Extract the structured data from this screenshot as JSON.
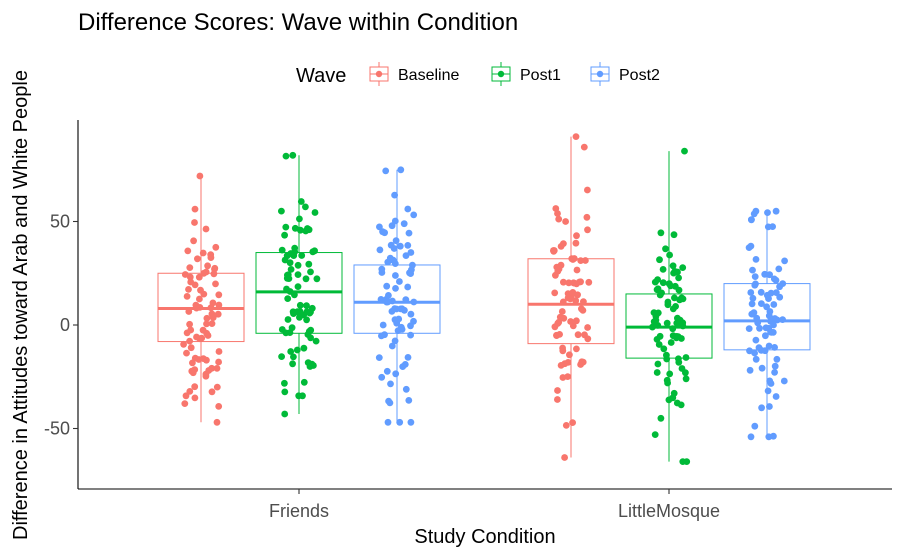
{
  "chart_data": {
    "type": "boxplot",
    "title": "Difference Scores: Wave within Condition",
    "xlabel": "Study Condition",
    "ylabel": "Difference in Attitudes toward Arab and White People",
    "ylim": [
      -78,
      98
    ],
    "yticks": [
      -50,
      0,
      50
    ],
    "grid": false,
    "legend": {
      "title": "Wave",
      "position": "top"
    },
    "categories": [
      "Friends",
      "LittleMosque"
    ],
    "series": [
      {
        "name": "Baseline",
        "color": "#F8766D",
        "boxes": [
          {
            "category": "Friends",
            "q1": -8,
            "median": 8,
            "q3": 25,
            "whisker_low": -47,
            "whisker_high": 72
          },
          {
            "category": "LittleMosque",
            "q1": -9,
            "median": 10,
            "q3": 32,
            "whisker_low": -64,
            "whisker_high": 91
          }
        ]
      },
      {
        "name": "Post1",
        "color": "#00BA38",
        "boxes": [
          {
            "category": "Friends",
            "q1": -4,
            "median": 16,
            "q3": 35,
            "whisker_low": -43,
            "whisker_high": 82
          },
          {
            "category": "LittleMosque",
            "q1": -16,
            "median": -1,
            "q3": 15,
            "whisker_low": -66,
            "whisker_high": 84
          }
        ]
      },
      {
        "name": "Post2",
        "color": "#619CFF",
        "boxes": [
          {
            "category": "Friends",
            "q1": -4,
            "median": 11,
            "q3": 29,
            "whisker_low": -47,
            "whisker_high": 75
          },
          {
            "category": "LittleMosque",
            "q1": -12,
            "median": 2,
            "q3": 20,
            "whisker_low": -54,
            "whisker_high": 55
          }
        ]
      }
    ]
  }
}
